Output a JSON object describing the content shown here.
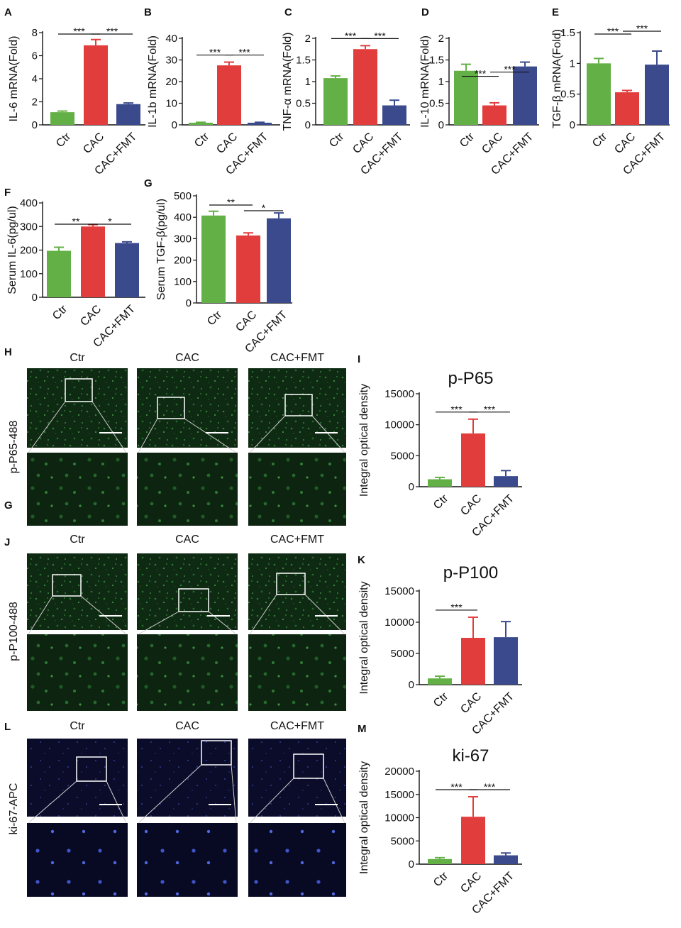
{
  "colors": {
    "ctr": "#63b046",
    "cac": "#e23d3d",
    "fmt": "#3b4a8c"
  },
  "categories": [
    "Ctr",
    "CAC",
    "CAC+FMT"
  ],
  "chart_data": [
    {
      "panel": "A",
      "type": "bar",
      "ylabel": "IL-6 mRNA(Fold)",
      "ylim": [
        0,
        8
      ],
      "ticks": [
        0,
        2,
        4,
        6,
        8
      ],
      "categories": [
        "Ctr",
        "CAC",
        "CAC+FMT"
      ],
      "values": [
        1.1,
        6.9,
        1.8
      ],
      "errors": [
        0.1,
        0.5,
        0.1
      ],
      "significance": [
        {
          "from": 0,
          "to": 1,
          "label": "***"
        },
        {
          "from": 1,
          "to": 2,
          "label": "***"
        }
      ]
    },
    {
      "panel": "B",
      "type": "bar",
      "ylabel": "IL-1b mRNA(Fold)",
      "ylim": [
        0,
        40
      ],
      "ticks": [
        0,
        10,
        20,
        30,
        40
      ],
      "categories": [
        "Ctr",
        "CAC",
        "CAC+FMT"
      ],
      "values": [
        1,
        27.5,
        1
      ],
      "errors": [
        0.2,
        1.5,
        0.2
      ],
      "significance": [
        {
          "from": 0,
          "to": 1,
          "label": "***"
        },
        {
          "from": 1,
          "to": 2,
          "label": "***"
        }
      ]
    },
    {
      "panel": "C",
      "type": "bar",
      "ylabel": "TNF-α mRNA(Fold)",
      "ylim": [
        0,
        2.0
      ],
      "ticks": [
        0,
        0.5,
        1.0,
        1.5,
        2.0
      ],
      "categories": [
        "Ctr",
        "CAC",
        "CAC+FMT"
      ],
      "values": [
        1.08,
        1.75,
        0.45
      ],
      "errors": [
        0.05,
        0.08,
        0.12
      ],
      "significance": [
        {
          "from": 0,
          "to": 1,
          "label": "***"
        },
        {
          "from": 1,
          "to": 2,
          "label": "***"
        }
      ]
    },
    {
      "panel": "D",
      "type": "bar",
      "ylabel": "IL-10 mRNA(Fold)",
      "ylim": [
        0,
        2.0
      ],
      "ticks": [
        0,
        0.5,
        1.0,
        1.5,
        2.0
      ],
      "categories": [
        "Ctr",
        "CAC",
        "CAC+FMT"
      ],
      "values": [
        1.25,
        0.45,
        1.35
      ],
      "errors": [
        0.15,
        0.06,
        0.1
      ],
      "significance": [
        {
          "from": 0,
          "to": 1,
          "label": "***"
        },
        {
          "from": 1,
          "to": 2,
          "label": "***"
        }
      ]
    },
    {
      "panel": "E",
      "type": "bar",
      "ylabel": "TGF-β mRNA(Fold)",
      "ylim": [
        0,
        1.5
      ],
      "ticks": [
        0,
        0.5,
        1.0,
        1.5
      ],
      "categories": [
        "Ctr",
        "CAC",
        "CAC+FMT"
      ],
      "values": [
        1.0,
        0.53,
        0.98
      ],
      "errors": [
        0.08,
        0.03,
        0.22
      ],
      "significance": [
        {
          "from": 0,
          "to": 1,
          "label": "***"
        },
        {
          "from": 1,
          "to": 2,
          "label": "***"
        }
      ]
    },
    {
      "panel": "F",
      "type": "bar",
      "ylabel": "Serum IL-6(pg/ul)",
      "ylim": [
        0,
        400
      ],
      "ticks": [
        0,
        100,
        200,
        300,
        400
      ],
      "categories": [
        "Ctr",
        "CAC",
        "CAC+FMT"
      ],
      "values": [
        197,
        300,
        230
      ],
      "errors": [
        15,
        8,
        5
      ],
      "significance": [
        {
          "from": 0,
          "to": 1,
          "label": "**"
        },
        {
          "from": 1,
          "to": 2,
          "label": "*"
        }
      ]
    },
    {
      "panel": "G",
      "type": "bar",
      "ylabel": "Serum TGF-β(pg/ul)",
      "ylim": [
        0,
        500
      ],
      "ticks": [
        0,
        100,
        200,
        300,
        400,
        500
      ],
      "categories": [
        "Ctr",
        "CAC",
        "CAC+FMT"
      ],
      "values": [
        408,
        315,
        395
      ],
      "errors": [
        20,
        12,
        25
      ],
      "significance": [
        {
          "from": 0,
          "to": 1,
          "label": "**"
        },
        {
          "from": 1,
          "to": 2,
          "label": "*"
        }
      ]
    },
    {
      "panel": "I",
      "type": "bar",
      "title": "p-P65",
      "ylabel": "Integral optical density",
      "ylim": [
        0,
        15000
      ],
      "ticks": [
        0,
        5000,
        10000,
        15000
      ],
      "categories": [
        "Ctr",
        "CAC",
        "CAC+FMT"
      ],
      "values": [
        1200,
        8600,
        1700
      ],
      "errors": [
        300,
        2300,
        900
      ],
      "significance": [
        {
          "from": 0,
          "to": 1,
          "label": "***"
        },
        {
          "from": 1,
          "to": 2,
          "label": "***"
        }
      ]
    },
    {
      "panel": "K",
      "type": "bar",
      "title": "p-P100",
      "ylabel": "Integral optical density",
      "ylim": [
        0,
        15000
      ],
      "ticks": [
        0,
        5000,
        10000,
        15000
      ],
      "categories": [
        "Ctr",
        "CAC",
        "CAC+FMT"
      ],
      "values": [
        1000,
        7500,
        7600
      ],
      "errors": [
        350,
        3300,
        2500
      ],
      "significance": [
        {
          "from": 0,
          "to": 1,
          "label": "***"
        }
      ]
    },
    {
      "panel": "M",
      "type": "bar",
      "title": "ki-67",
      "ylabel": "Integral optical density",
      "ylim": [
        0,
        20000
      ],
      "ticks": [
        0,
        5000,
        10000,
        15000,
        20000
      ],
      "categories": [
        "Ctr",
        "CAC",
        "CAC+FMT"
      ],
      "values": [
        1100,
        10200,
        1900
      ],
      "errors": [
        300,
        4300,
        500
      ],
      "significance": [
        {
          "from": 0,
          "to": 1,
          "label": "***"
        },
        {
          "from": 1,
          "to": 2,
          "label": "***"
        }
      ]
    }
  ],
  "image_panels": [
    {
      "panel": "H",
      "sub_label": "G",
      "side_label": "p-P65-488",
      "columns": [
        "Ctr",
        "CAC",
        "CAC+FMT"
      ],
      "stain": "green"
    },
    {
      "panel": "J",
      "side_label": "p-P100-488",
      "columns": [
        "Ctr",
        "CAC",
        "CAC+FMT"
      ],
      "stain": "green"
    },
    {
      "panel": "L",
      "side_label": "ki-67-APC",
      "columns": [
        "Ctr",
        "CAC",
        "CAC+FMT"
      ],
      "stain": "blue"
    }
  ]
}
